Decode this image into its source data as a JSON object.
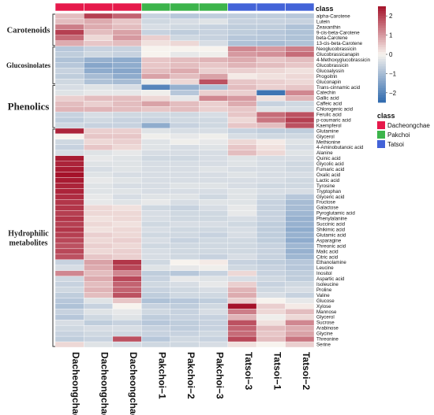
{
  "chart_data": {
    "type": "heatmap",
    "columns": [
      "Dacheongchae−2",
      "Dacheongchae−1",
      "Dacheongchae−3",
      "Pakchoi−1",
      "Pakchoi−2",
      "Pakchoi−3",
      "Tatsoi−3",
      "Tatsoi−1",
      "Tatsoi−2"
    ],
    "column_class": [
      "Dacheongchae",
      "Dacheongchae",
      "Dacheongchae",
      "Pakchoi",
      "Pakchoi",
      "Pakchoi",
      "Tatsoi",
      "Tatsoi",
      "Tatsoi"
    ],
    "rows": [
      "alpha-Carotene",
      "Lutein",
      "Zeaxanthin",
      "9-cis-beta-Carotene",
      "beta-Carotene",
      "13-cis-beta-Carotene",
      "Neoglucobrassicin",
      "Glucobrassicanapin",
      "4-Methoxyglucobrassicin",
      "Glucobrassicin",
      "Glucoalyssin",
      "Progoitrin",
      "Gluconapin",
      "Trans-cinnamic acid",
      "Catechin",
      "Gallic acid",
      "Caffeic acid",
      "Chlorogenic acid",
      "Ferulic acid",
      "p-coumaric acid",
      "Kaempferol",
      "Glutamine",
      "Glycerol",
      "Methionine",
      "4-Aminobutanoic acid",
      "Alanine",
      "Quinic acid",
      "Glycolic acid",
      "Fumaric acid",
      "Oxalic acid",
      "Lactic acid",
      "Tyrosine",
      "Tryptophan",
      "Glyceric acid",
      "Fructose",
      "Galactose",
      "Pyroglutamic acid",
      "Phenylalanine",
      "Succinic acid",
      "Shikimic acid",
      "Glutamic acid",
      "Asparagine",
      "Threonic acid",
      "Malic acid",
      "Citric acid",
      "Ethanolamine",
      "Leucine",
      "Inositol",
      "Aspartic acid",
      "Isoleucine",
      "Proline",
      "Valine",
      "Glucose",
      "Xylose",
      "Mannose",
      "Glycerol",
      "Sucrose",
      "Arabinose",
      "Glycine",
      "Threonine",
      "Serine"
    ],
    "groups": [
      {
        "label": "Carotenoids",
        "from": 0,
        "to": 5
      },
      {
        "label": "Glucosinolates",
        "from": 6,
        "to": 12
      },
      {
        "label": "Phenolics",
        "from": 13,
        "to": 20
      },
      {
        "label": "Hydrophilic metabolites",
        "from": 21,
        "to": 60
      }
    ],
    "values": [
      [
        0.6,
        2.0,
        1.6,
        -0.6,
        -0.8,
        -0.7,
        -0.7,
        -0.7,
        -0.8
      ],
      [
        0.6,
        0.8,
        0.5,
        -0.5,
        -0.4,
        -0.3,
        -0.6,
        -0.6,
        -0.6
      ],
      [
        1.3,
        0.8,
        0.6,
        -0.4,
        -0.5,
        -0.6,
        -0.7,
        -0.7,
        -0.9
      ],
      [
        2.0,
        0.6,
        0.9,
        -0.6,
        -0.7,
        -0.6,
        -0.7,
        -0.8,
        -0.9
      ],
      [
        1.5,
        0.3,
        1.0,
        0.4,
        -0.5,
        -0.6,
        -0.8,
        -0.8,
        -0.9
      ],
      [
        0.8,
        0.5,
        0.6,
        0.2,
        0.3,
        -0.4,
        -0.9,
        -1.0,
        -0.9
      ],
      [
        -0.8,
        -0.6,
        -0.6,
        0.0,
        0.0,
        0.0,
        1.2,
        1.0,
        1.3
      ],
      [
        -0.7,
        -0.5,
        -0.6,
        0.0,
        -0.2,
        -0.1,
        1.0,
        1.1,
        1.5
      ],
      [
        -0.9,
        -1.2,
        -1.3,
        0.5,
        0.6,
        0.7,
        0.8,
        0.5,
        0.6
      ],
      [
        -0.8,
        -1.4,
        -1.3,
        0.5,
        0.6,
        0.5,
        0.7,
        0.6,
        0.5
      ],
      [
        -0.6,
        -1.3,
        -1.4,
        0.6,
        0.8,
        0.4,
        0.4,
        0.3,
        0.2
      ],
      [
        -0.7,
        -1.0,
        -1.3,
        0.9,
        0.6,
        0.9,
        0.1,
        0.2,
        0.3
      ],
      [
        -0.5,
        -0.9,
        -1.0,
        -0.1,
        0.3,
        1.8,
        0.5,
        0.4,
        0.3
      ],
      [
        -0.4,
        -0.3,
        -0.4,
        -2.0,
        -1.2,
        -0.9,
        0.6,
        0.4,
        0.5
      ],
      [
        -0.3,
        -0.2,
        -0.2,
        -0.1,
        -0.8,
        0.4,
        0.4,
        -2.3,
        1.2
      ],
      [
        0.4,
        0.6,
        0.6,
        0.3,
        -0.2,
        1.2,
        1.0,
        0.2,
        0.7
      ],
      [
        0.6,
        0.4,
        0.6,
        0.9,
        0.6,
        0.4,
        0.8,
        -0.6,
        -0.5
      ],
      [
        0.7,
        0.7,
        0.6,
        0.5,
        0.6,
        0.4,
        0.5,
        -0.3,
        -0.4
      ],
      [
        -0.6,
        -0.4,
        -0.5,
        -0.5,
        -0.5,
        -0.4,
        0.5,
        1.5,
        1.8
      ],
      [
        -0.7,
        -0.5,
        -0.6,
        -0.6,
        -0.5,
        -0.5,
        0.3,
        1.4,
        2.0
      ],
      [
        -0.5,
        -0.6,
        -0.6,
        -1.3,
        -0.6,
        -0.5,
        0.5,
        0.6,
        1.8
      ],
      [
        2.3,
        0.4,
        0.4,
        -0.3,
        -0.4,
        -0.4,
        -0.6,
        -0.7,
        -0.7
      ],
      [
        0.0,
        0.5,
        0.5,
        -0.1,
        -0.2,
        -0.1,
        -0.4,
        -0.5,
        -0.5
      ],
      [
        -0.5,
        0.3,
        0.4,
        -0.3,
        -0.1,
        -0.2,
        0.3,
        0.1,
        -0.3
      ],
      [
        -0.6,
        0.5,
        0.3,
        -0.3,
        -0.4,
        -0.3,
        0.5,
        0.2,
        -0.4
      ],
      [
        -0.4,
        -0.3,
        -0.2,
        -0.4,
        -0.4,
        -0.4,
        0.6,
        0.3,
        -0.3
      ],
      [
        2.4,
        -0.2,
        -0.3,
        -0.5,
        -0.5,
        -0.4,
        -0.3,
        -0.4,
        -0.4
      ],
      [
        2.3,
        -0.3,
        -0.3,
        -0.4,
        -0.4,
        -0.4,
        -0.3,
        -0.4,
        -0.5
      ],
      [
        2.4,
        -0.4,
        -0.3,
        -0.4,
        -0.4,
        -0.3,
        -0.4,
        -0.4,
        -0.5
      ],
      [
        2.5,
        -0.3,
        -0.4,
        -0.4,
        -0.4,
        -0.4,
        -0.3,
        -0.4,
        -0.4
      ],
      [
        2.4,
        -0.2,
        -0.3,
        -0.4,
        -0.4,
        -0.4,
        -0.4,
        -0.4,
        -0.5
      ],
      [
        2.3,
        -0.3,
        -0.4,
        -0.4,
        -0.3,
        -0.3,
        -0.4,
        -0.5,
        -0.5
      ],
      [
        2.3,
        -0.3,
        -0.3,
        -0.4,
        -0.4,
        -0.4,
        -0.3,
        -0.4,
        -0.4
      ],
      [
        2.2,
        -0.2,
        -0.4,
        -0.3,
        -0.3,
        -0.5,
        -0.3,
        -0.5,
        -0.8
      ],
      [
        2.1,
        -0.2,
        -0.3,
        -0.2,
        -0.4,
        -0.3,
        -0.3,
        -0.6,
        -1.0
      ],
      [
        2.1,
        0.3,
        0.2,
        -0.5,
        -0.6,
        -0.4,
        -0.2,
        -0.6,
        -1.0
      ],
      [
        2.0,
        0.3,
        0.3,
        -0.4,
        -0.5,
        -0.5,
        -0.2,
        -0.6,
        -1.1
      ],
      [
        2.1,
        0.2,
        0.3,
        -0.4,
        -0.5,
        -0.5,
        -0.4,
        -0.6,
        -1.2
      ],
      [
        2.0,
        0.3,
        0.2,
        -0.5,
        -0.4,
        -0.4,
        -0.5,
        -0.7,
        -1.2
      ],
      [
        2.1,
        0.2,
        0.3,
        -0.4,
        -0.5,
        -0.5,
        -0.4,
        -0.7,
        -1.3
      ],
      [
        2.0,
        0.4,
        0.3,
        -0.5,
        -0.5,
        -0.6,
        -0.4,
        -0.7,
        -1.2
      ],
      [
        1.9,
        0.3,
        0.4,
        -0.4,
        -0.6,
        -0.5,
        -0.5,
        -0.7,
        -1.3
      ],
      [
        1.8,
        0.4,
        0.3,
        -0.5,
        -0.5,
        -0.5,
        -0.5,
        -0.6,
        -1.1
      ],
      [
        1.9,
        0.3,
        0.4,
        -0.4,
        -0.5,
        -0.5,
        -0.5,
        -0.6,
        -1.2
      ],
      [
        1.8,
        0.5,
        0.4,
        -0.4,
        -0.5,
        -0.6,
        -0.4,
        -0.6,
        -1.1
      ],
      [
        -0.6,
        0.9,
        2.1,
        -0.5,
        0.0,
        0.1,
        -0.6,
        -0.7,
        -0.8
      ],
      [
        -0.4,
        0.8,
        1.9,
        -0.3,
        -0.2,
        -0.1,
        -0.5,
        -0.6,
        -0.8
      ],
      [
        1.2,
        0.6,
        1.2,
        -0.7,
        -0.8,
        -0.6,
        0.3,
        -0.6,
        -0.7
      ],
      [
        -0.5,
        0.8,
        1.9,
        -0.6,
        -0.2,
        -0.3,
        -0.4,
        -0.5,
        -0.7
      ],
      [
        -0.6,
        0.6,
        1.6,
        -0.5,
        -0.4,
        -0.2,
        0.4,
        -0.6,
        -0.5
      ],
      [
        -0.5,
        0.7,
        1.6,
        -0.6,
        -0.5,
        -0.4,
        0.7,
        -0.5,
        -0.4
      ],
      [
        -0.7,
        0.6,
        1.8,
        -0.7,
        -0.5,
        -0.5,
        0.8,
        -0.4,
        -0.6
      ],
      [
        -0.8,
        -0.3,
        0.5,
        -0.9,
        -0.8,
        -0.7,
        0.4,
        0.0,
        -0.2
      ],
      [
        -0.9,
        -0.6,
        0.0,
        -0.6,
        -0.7,
        -0.5,
        2.5,
        0.4,
        0.1
      ],
      [
        -0.6,
        -0.3,
        -0.2,
        -0.5,
        -0.6,
        -0.4,
        1.3,
        0.3,
        0.6
      ],
      [
        -0.8,
        -0.5,
        -0.3,
        -0.7,
        -0.6,
        -0.6,
        0.7,
        -0.1,
        0.3
      ],
      [
        -0.4,
        -0.7,
        -0.6,
        -0.8,
        -0.7,
        -0.6,
        1.8,
        0.2,
        1.2
      ],
      [
        -0.5,
        -0.4,
        -0.4,
        -0.6,
        -0.7,
        -0.6,
        1.6,
        0.6,
        0.8
      ],
      [
        -0.6,
        -0.5,
        -0.5,
        -0.6,
        -0.6,
        -0.5,
        1.5,
        0.5,
        0.9
      ],
      [
        -0.7,
        -0.6,
        1.8,
        -0.8,
        -0.5,
        -0.6,
        1.9,
        0.6,
        1.4
      ],
      [
        0.3,
        -0.3,
        -0.4,
        -0.5,
        -0.5,
        -0.4,
        0.2,
        0.0,
        0.4
      ]
    ],
    "color_scale": {
      "min": -2.5,
      "max": 2.5,
      "low": "#2f6aae",
      "mid": "#f7f3ee",
      "high": "#a5122a",
      "ticks": [
        2,
        1,
        0,
        -1,
        -2
      ]
    },
    "legend": {
      "title": "class",
      "annotation_title": "class",
      "items": [
        {
          "label": "Dacheongchae",
          "color": "#e6194b"
        },
        {
          "label": "Pakchoi",
          "color": "#3cb44b"
        },
        {
          "label": "Tatsoi",
          "color": "#4363d8"
        }
      ]
    }
  }
}
